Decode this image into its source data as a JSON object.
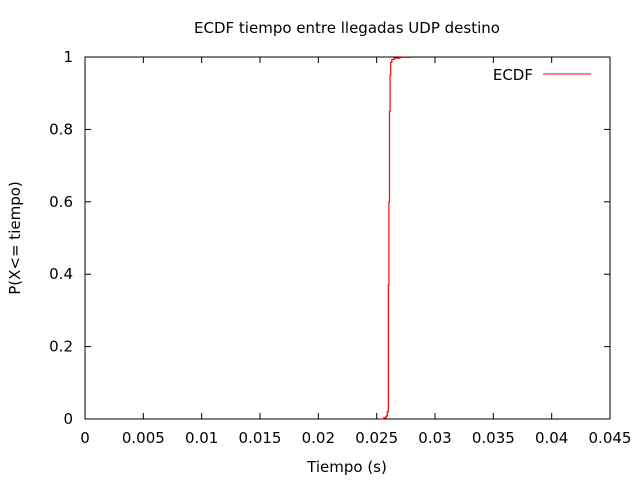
{
  "chart_data": {
    "type": "line",
    "title": "ECDF tiempo entre llegadas UDP destino",
    "xlabel": "Tiempo (s)",
    "ylabel": "P(X<= tiempo)",
    "xlim": [
      0,
      0.045
    ],
    "ylim": [
      0,
      1
    ],
    "xticks": [
      0,
      0.005,
      0.01,
      0.015,
      0.02,
      0.025,
      0.03,
      0.035,
      0.04,
      0.045
    ],
    "xtick_labels": [
      "0",
      "0.005",
      "0.01",
      "0.015",
      "0.02",
      "0.025",
      "0.03",
      "0.035",
      "0.04",
      "0.045"
    ],
    "yticks": [
      0,
      0.2,
      0.4,
      0.6,
      0.8,
      1
    ],
    "ytick_labels": [
      "0",
      "0.2",
      "0.4",
      "0.6",
      "0.8",
      "1"
    ],
    "grid": false,
    "legend_position": "top-right",
    "series": [
      {
        "name": "ECDF",
        "color": "#ff0000",
        "x": [
          0.0252,
          0.0256,
          0.0258,
          0.0259,
          0.026,
          0.026,
          0.02605,
          0.0261,
          0.02615,
          0.0262,
          0.0263,
          0.0265,
          0.027,
          0.028
        ],
        "y": [
          0.0,
          0.003,
          0.008,
          0.02,
          0.1,
          0.37,
          0.6,
          0.85,
          0.95,
          0.985,
          0.993,
          0.997,
          0.999,
          1.0
        ]
      }
    ]
  }
}
